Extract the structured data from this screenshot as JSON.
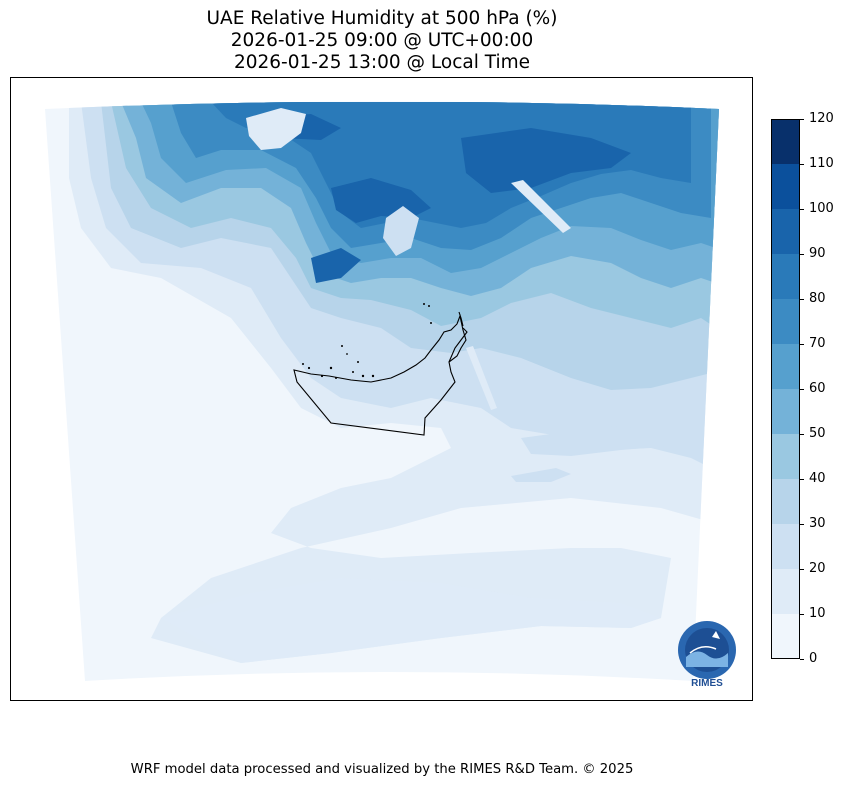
{
  "title": {
    "line1": "UAE Relative Humidity at 500 hPa (%)",
    "line2": "2026-01-25 09:00 @ UTC+00:00",
    "line3": "2026-01-25 13:00 @ Local Time"
  },
  "colorbar": {
    "ticks": [
      "0",
      "10",
      "20",
      "30",
      "40",
      "50",
      "60",
      "70",
      "80",
      "90",
      "100",
      "110",
      "120"
    ],
    "range": [
      0,
      120
    ],
    "levels": [
      0,
      10,
      20,
      30,
      40,
      50,
      60,
      70,
      80,
      90,
      100,
      110,
      120
    ],
    "colors": [
      "#f0f6fc",
      "#dfebf7",
      "#cde0f2",
      "#b7d4ea",
      "#9ac8e1",
      "#74b2d8",
      "#56a0ce",
      "#3c8bc3",
      "#2a7ab9",
      "#1964ab",
      "#0b509c",
      "#08306b"
    ]
  },
  "logo": {
    "text": "RIMES",
    "icon": "rimes-logo-icon"
  },
  "footer": "WRF model data processed and visualized by the RIMES R&D Team. © 2025"
}
